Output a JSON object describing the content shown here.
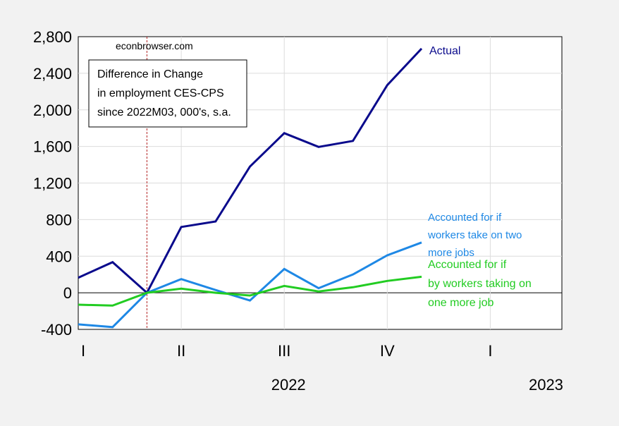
{
  "chart_data": {
    "type": "line",
    "watermark": "econbrowser.com",
    "title_box": [
      "Difference in Change",
      "in employment CES-CPS",
      "since 2022M03, 000's, s.a."
    ],
    "ylim": [
      -400,
      2800
    ],
    "y_ticks": [
      -400,
      0,
      400,
      800,
      1200,
      1600,
      2000,
      2400,
      2800
    ],
    "y_tick_labels": [
      "-400",
      "0",
      "400",
      "800",
      "1,200",
      "1,600",
      "2,000",
      "2,400",
      "2,800"
    ],
    "x_quarter_ticks": [
      0,
      3,
      6,
      9,
      12
    ],
    "x_quarter_labels": [
      "I",
      "II",
      "III",
      "IV",
      "I"
    ],
    "x_year_labels": [
      {
        "label": "2022",
        "x": 6
      },
      {
        "label": "2023",
        "x": 13.5
      }
    ],
    "x_range": [
      0,
      14
    ],
    "reference_line_x": 2,
    "series": [
      {
        "name": "Actual",
        "label_lines": [
          "Actual"
        ],
        "color": "#0a0a8c",
        "x": [
          0,
          1,
          2,
          3,
          4,
          5,
          6,
          7,
          8,
          9,
          10
        ],
        "values": [
          165,
          335,
          0,
          720,
          780,
          1380,
          1745,
          1595,
          1660,
          2270,
          2670
        ]
      },
      {
        "name": "Accounted for if workers take on two more jobs",
        "label_lines": [
          "Accounted for if",
          "workers take on two",
          "more jobs"
        ],
        "color": "#1e88e5",
        "x": [
          0,
          1,
          2,
          3,
          4,
          5,
          6,
          7,
          8,
          9,
          10
        ],
        "values": [
          -345,
          -375,
          0,
          150,
          30,
          -85,
          260,
          50,
          200,
          410,
          550
        ]
      },
      {
        "name": "Accounted for if by workers taking on one more job",
        "label_lines": [
          "Accounted for if",
          "by workers taking on",
          "one more job"
        ],
        "color": "#22cc22",
        "x": [
          0,
          1,
          2,
          3,
          4,
          5,
          6,
          7,
          8,
          9,
          10
        ],
        "values": [
          -130,
          -140,
          0,
          45,
          0,
          -30,
          75,
          15,
          60,
          130,
          175
        ]
      }
    ]
  }
}
